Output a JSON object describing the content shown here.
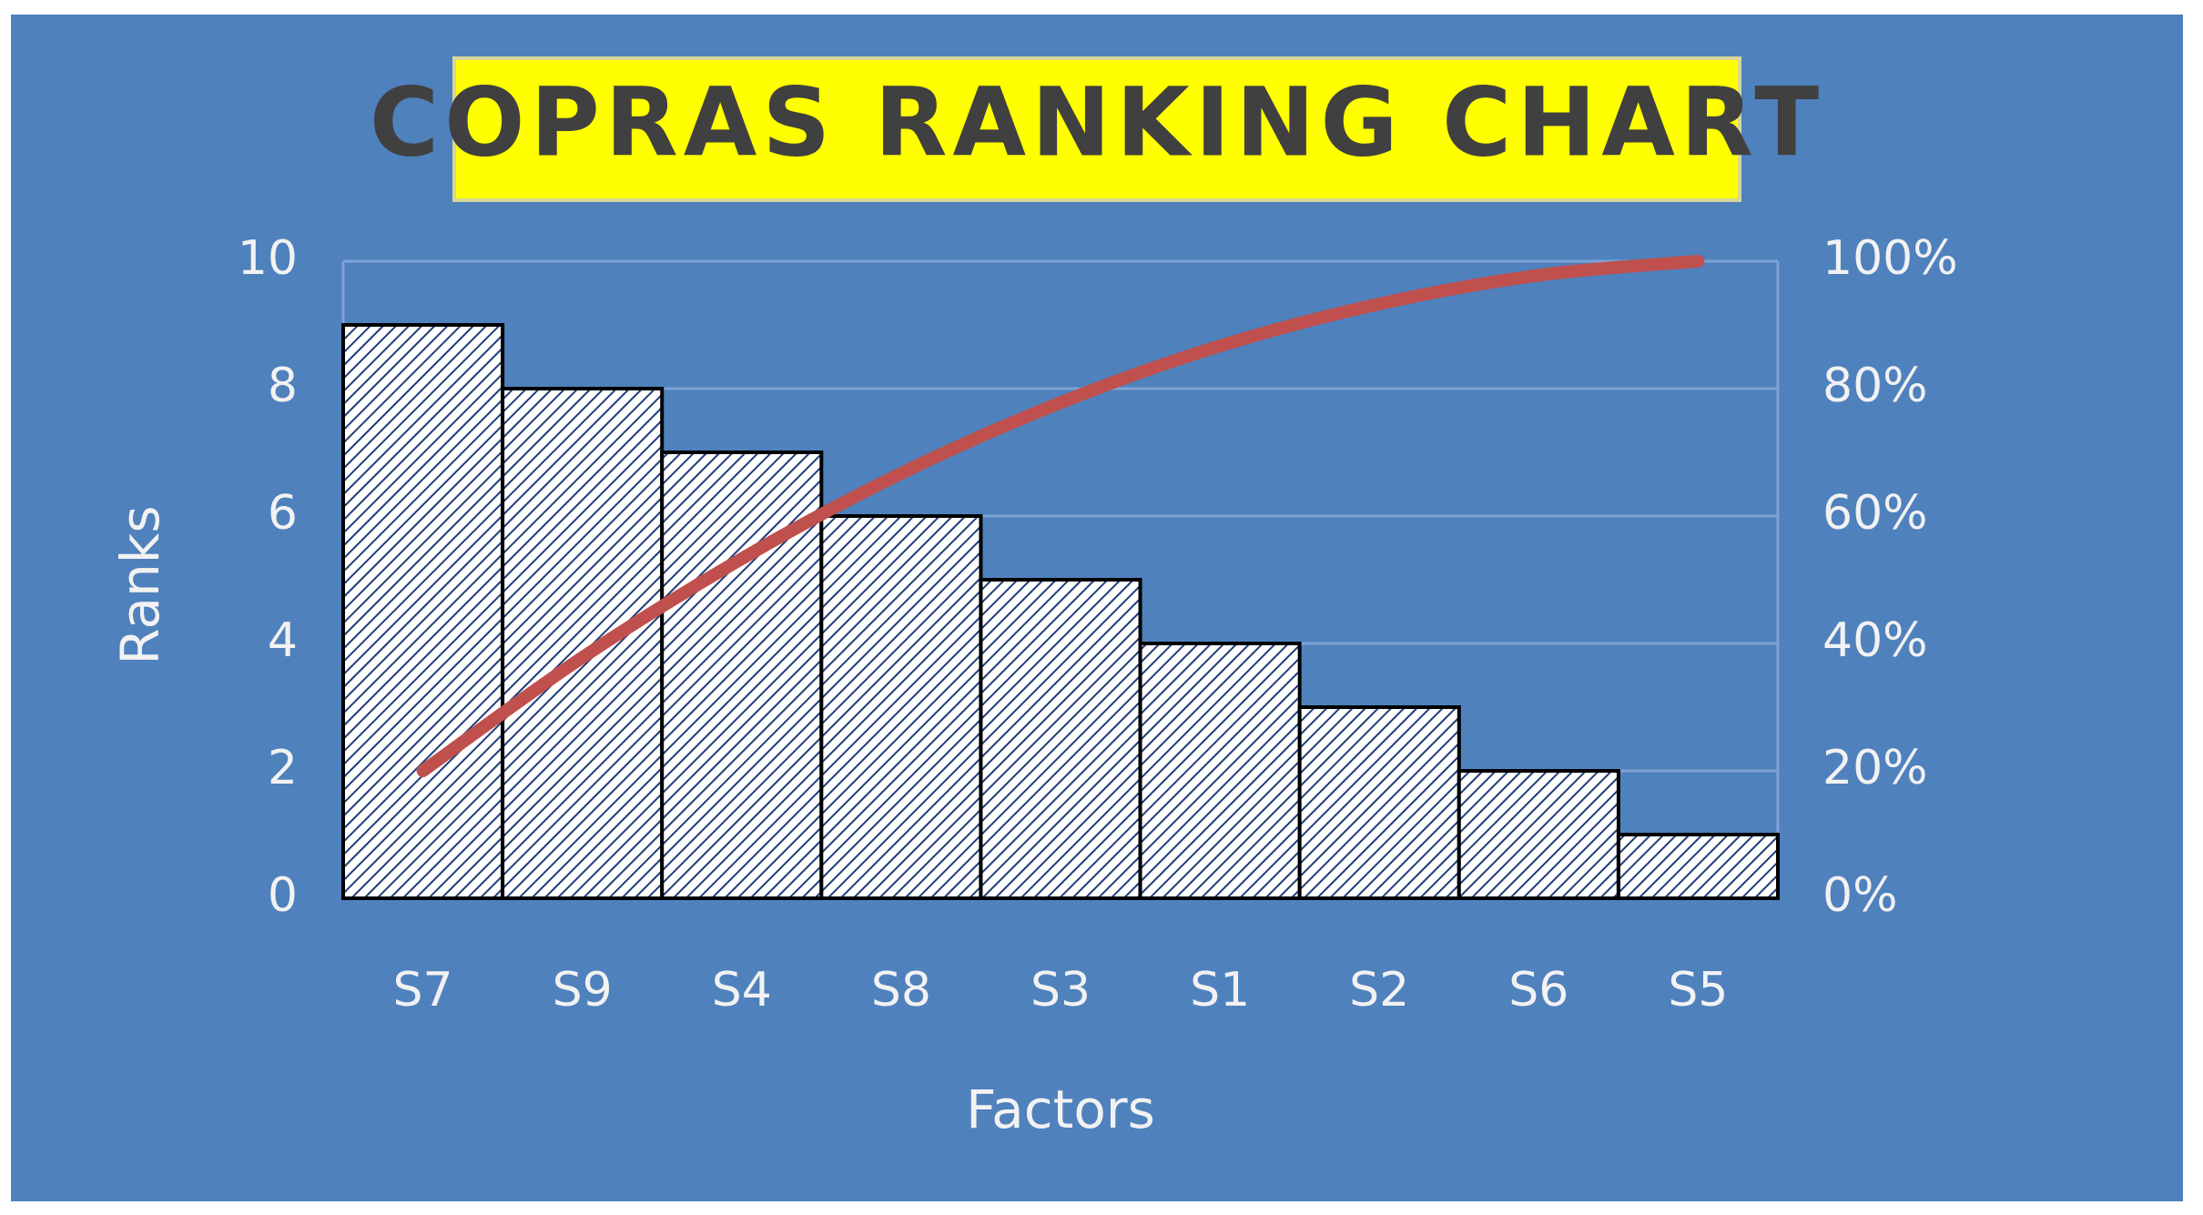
{
  "chart_data": {
    "type": "bar",
    "title": "COPRAS RANKING CHART",
    "xlabel": "Factors",
    "ylabel": "Ranks",
    "categories": [
      "S7",
      "S9",
      "S4",
      "S8",
      "S3",
      "S1",
      "S2",
      "S6",
      "S5"
    ],
    "series": [
      {
        "type": "bar",
        "axis": "left",
        "values": [
          9,
          8,
          7,
          6,
          5,
          4,
          3,
          2,
          1
        ]
      },
      {
        "type": "line",
        "axis": "right",
        "values": [
          20.0,
          37.8,
          53.3,
          66.7,
          77.8,
          86.7,
          93.3,
          97.8,
          100.0
        ]
      }
    ],
    "ylim": [
      0,
      10
    ],
    "yticks": [
      "0",
      "2",
      "4",
      "6",
      "8",
      "10"
    ],
    "y2lim": [
      0,
      100
    ],
    "y2ticks": [
      "0%",
      "20%",
      "40%",
      "60%",
      "80%",
      "100%"
    ],
    "grid": true,
    "legend": "none",
    "colors": {
      "background": "#4f81bd",
      "title_box": "#ffff00",
      "title_text": "#404040",
      "bar_fill": "#ffffff",
      "bar_hatch": "#1f3d7a",
      "bar_border": "#000000",
      "line": "#c0504d",
      "gridline": "#7fa3d6",
      "text": "#f2f2f2"
    }
  }
}
